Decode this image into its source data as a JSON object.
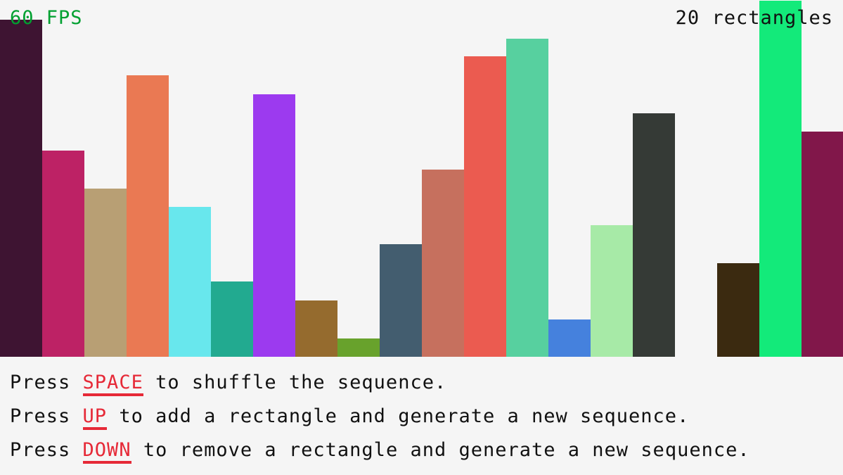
{
  "hud": {
    "fps": "60 FPS",
    "count": "20 rectangles"
  },
  "colors": {
    "fps": "#00a030",
    "key": "#e62937",
    "background": "#f5f5f5"
  },
  "bars": [
    {
      "value": 479,
      "color": "#3e1432"
    },
    {
      "value": 293,
      "color": "#bd2265"
    },
    {
      "value": 239,
      "color": "#b89f74"
    },
    {
      "value": 400,
      "color": "#ea7953"
    },
    {
      "value": 213,
      "color": "#68e7ed"
    },
    {
      "value": 107,
      "color": "#22aa90"
    },
    {
      "value": 373,
      "color": "#9c3aef"
    },
    {
      "value": 80,
      "color": "#956b2e"
    },
    {
      "value": 26,
      "color": "#68a22c"
    },
    {
      "value": 160,
      "color": "#435d6f"
    },
    {
      "value": 266,
      "color": "#c6705e"
    },
    {
      "value": 427,
      "color": "#eb5b50"
    },
    {
      "value": 452,
      "color": "#57d09f"
    },
    {
      "value": 53,
      "color": "#4581dd"
    },
    {
      "value": 187,
      "color": "#a7eaa7"
    },
    {
      "value": 346,
      "color": "#353a36"
    },
    {
      "value": 0,
      "color": "#f5f5f5"
    },
    {
      "value": 133,
      "color": "#3b2a10"
    },
    {
      "value": 506,
      "color": "#13ea7a"
    },
    {
      "value": 320,
      "color": "#81174a"
    }
  ],
  "instructions": [
    {
      "pre": "Press ",
      "key": "SPACE",
      "post": " to shuffle the sequence."
    },
    {
      "pre": "Press ",
      "key": "UP",
      "post": " to add a rectangle and generate a new sequence."
    },
    {
      "pre": "Press ",
      "key": "DOWN",
      "post": " to remove a rectangle and generate a new sequence."
    }
  ]
}
